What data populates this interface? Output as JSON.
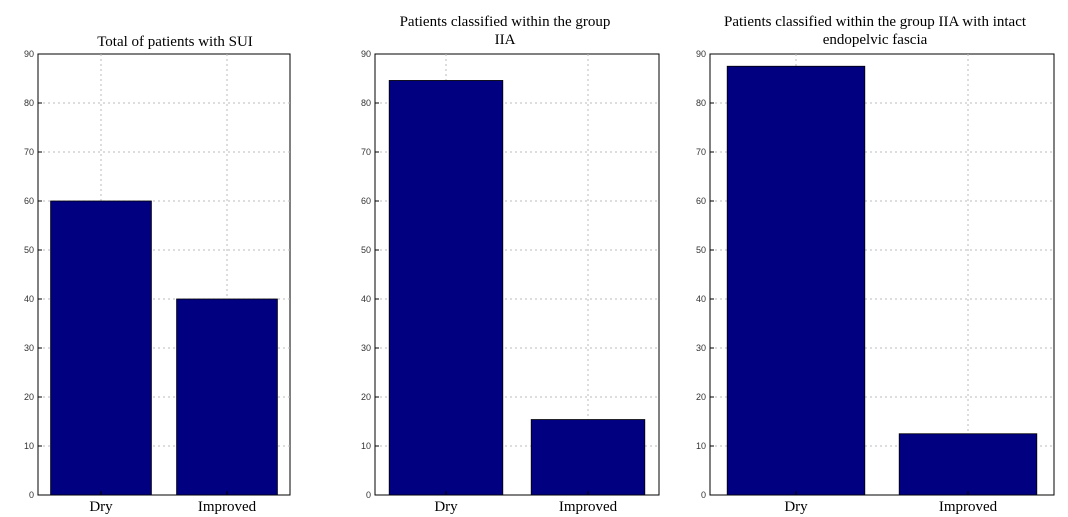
{
  "chart_data": [
    {
      "type": "bar",
      "title": "Total of patients with SUI",
      "categories": [
        "Dry",
        "Improved"
      ],
      "values": [
        60,
        40
      ],
      "ylim": [
        0,
        90
      ],
      "yticks": [
        0,
        10,
        20,
        30,
        40,
        50,
        60,
        70,
        80,
        90
      ],
      "xlabel": "",
      "ylabel": "",
      "grid": true,
      "bar_color": "#000080"
    },
    {
      "type": "bar",
      "title": "Patients classified within the group IIA",
      "categories": [
        "Dry",
        "Improved"
      ],
      "values": [
        84.6,
        15.4
      ],
      "ylim": [
        0,
        90
      ],
      "yticks": [
        0,
        10,
        20,
        30,
        40,
        50,
        60,
        70,
        80,
        90
      ],
      "xlabel": "",
      "ylabel": "",
      "grid": true,
      "bar_color": "#000080"
    },
    {
      "type": "bar",
      "title": "Patients classified within the group IIA with intact endopelvic fascia",
      "categories": [
        "Dry",
        "Improved"
      ],
      "values": [
        87.5,
        12.5
      ],
      "ylim": [
        0,
        90
      ],
      "yticks": [
        0,
        10,
        20,
        30,
        40,
        50,
        60,
        70,
        80,
        90
      ],
      "xlabel": "",
      "ylabel": "",
      "grid": true,
      "bar_color": "#000080"
    }
  ]
}
